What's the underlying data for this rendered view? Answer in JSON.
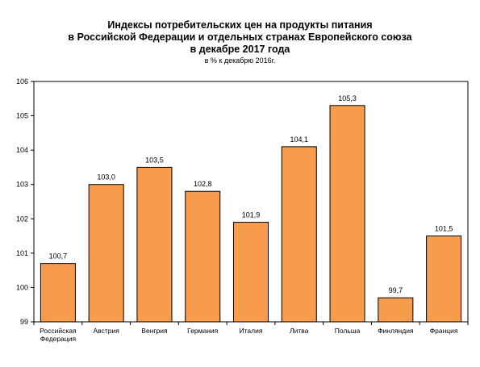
{
  "chart_data": {
    "type": "bar",
    "title_lines": [
      "Индексы потребительских цен на продукты питания",
      "в Российской Федерации и отдельных странах Европейского союза",
      "в декабре 2017 года"
    ],
    "subtitle": "в % к декабрю 2016г.",
    "categories": [
      "Российская Федерация",
      "Австрия",
      "Венгрия",
      "Германия",
      "Италия",
      "Литва",
      "Польша",
      "Финляндия",
      "Франция"
    ],
    "category_lines": [
      [
        "Российская",
        "Федерация"
      ],
      [
        "Австрия"
      ],
      [
        "Венгрия"
      ],
      [
        "Германия"
      ],
      [
        "Италия"
      ],
      [
        "Литва"
      ],
      [
        "Польша"
      ],
      [
        "Финляндия"
      ],
      [
        "Франция"
      ]
    ],
    "values": [
      100.7,
      103.0,
      103.5,
      102.8,
      101.9,
      104.1,
      105.3,
      99.7,
      101.5
    ],
    "value_labels": [
      "100,7",
      "103,0",
      "103,5",
      "102,8",
      "101,9",
      "104,1",
      "105,3",
      "99,7",
      "101,5"
    ],
    "ylim": [
      99,
      106
    ],
    "yticks": [
      99,
      100,
      101,
      102,
      103,
      104,
      105,
      106
    ],
    "grid": false,
    "legend": "none",
    "bar_color": "#f79c4c",
    "bar_edge_color": "#000000"
  }
}
